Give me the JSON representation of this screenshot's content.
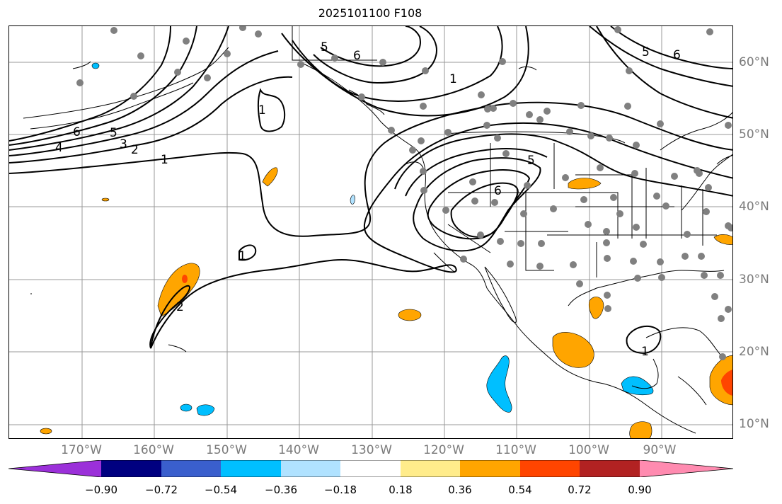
{
  "title": "2025101100 F108",
  "lon_labels": [
    "170°W",
    "160°W",
    "150°W",
    "140°W",
    "130°W",
    "120°W",
    "110°W",
    "100°W",
    "90°W"
  ],
  "lat_labels": [
    "60°N",
    "50°N",
    "40°N",
    "30°N",
    "20°N",
    "10°N"
  ],
  "contour_labels": [
    "1",
    "2",
    "3",
    "4",
    "5",
    "6"
  ],
  "colorbar": {
    "ticks": [
      "−0.90",
      "−0.72",
      "−0.54",
      "−0.36",
      "−0.18",
      "0.18",
      "0.36",
      "0.54",
      "0.72",
      "0.90"
    ],
    "colors": [
      "#9b30d9",
      "#000080",
      "#3a5fcd",
      "#00bfff",
      "#b0e2ff",
      "#ffffff",
      "#ffec8b",
      "#ffa500",
      "#ff4500",
      "#b22222",
      "#ff8bb0"
    ]
  }
}
